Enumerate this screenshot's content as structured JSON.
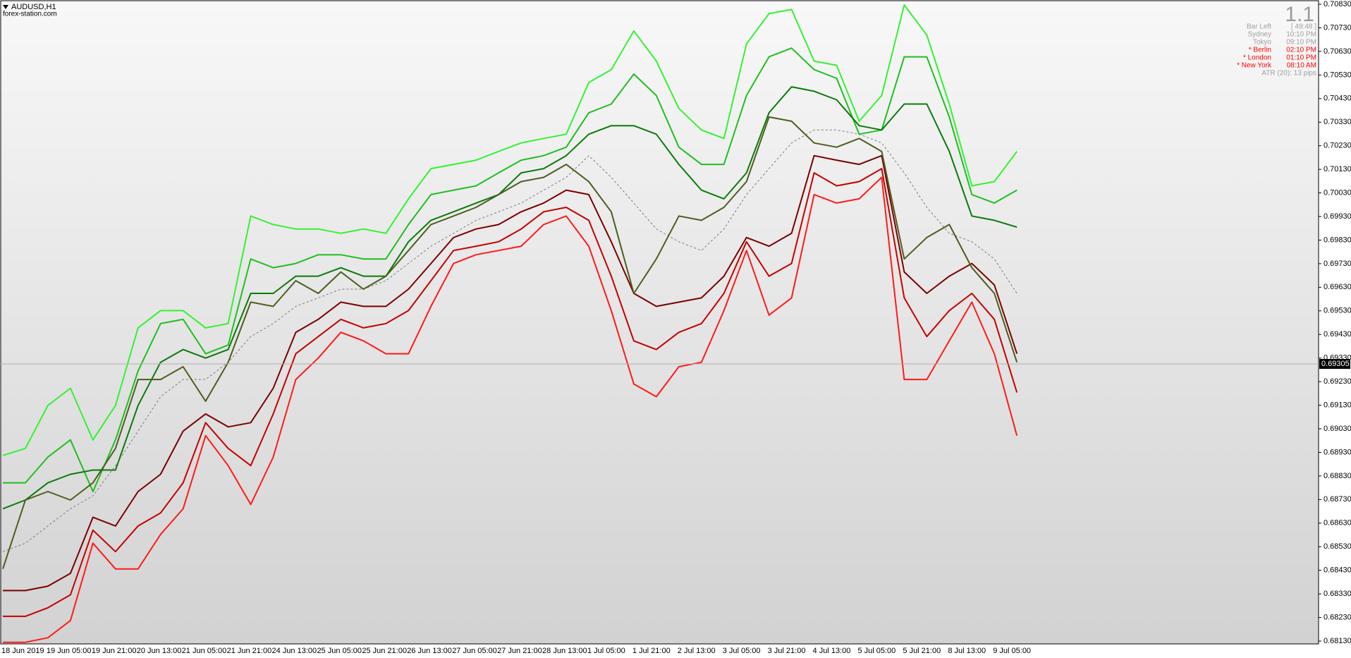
{
  "chart_data": {
    "type": "line",
    "title": "AUDUSD,H1",
    "subtitle": "forex-station.com",
    "categories": [
      "18 Jun 2019",
      null,
      "19 Jun 05:00",
      null,
      "19 Jun 21:00",
      null,
      "20 Jun 13:00",
      null,
      "21 Jun 05:00",
      null,
      "21 Jun 21:00",
      null,
      "24 Jun 13:00",
      null,
      "25 Jun 05:00",
      null,
      "25 Jun 21:00",
      null,
      "26 Jun 13:00",
      null,
      "27 Jun 05:00",
      null,
      "27 Jun 21:00",
      null,
      "28 Jun 13:00",
      null,
      "1 Jul 05:00",
      null,
      "1 Jul 21:00",
      null,
      "2 Jul 13:00",
      null,
      "3 Jul 05:00",
      null,
      "3 Jul 21:00",
      null,
      "4 Jul 13:00",
      null,
      "5 Jul 05:00",
      null,
      "5 Jul 21:00",
      null,
      "8 Jul 13:00",
      null,
      "9 Jul 05:00",
      null
    ],
    "series": [
      {
        "color": "#33f233",
        "line_style": "solid",
        "values": [
          0.68917,
          0.68947,
          0.69129,
          0.69202,
          0.68983,
          0.69129,
          0.69458,
          0.69531,
          0.69531,
          0.69458,
          0.69476,
          0.69932,
          0.69896,
          0.69877,
          0.69877,
          0.69859,
          0.69877,
          0.69859,
          0.70005,
          0.70133,
          0.70151,
          0.70169,
          0.70206,
          0.70242,
          0.70261,
          0.70279,
          0.70498,
          0.70553,
          0.70717,
          0.70589,
          0.70388,
          0.70297,
          0.70261,
          0.70662,
          0.7079,
          0.70808,
          0.70589,
          0.70571,
          0.70334,
          0.70443,
          0.70827,
          0.70699,
          0.70407,
          0.7006,
          0.70078,
          0.70206
        ]
      },
      {
        "color": "#1fbf1f",
        "line_style": "solid",
        "values": [
          0.68801,
          0.68801,
          0.6891,
          0.68983,
          0.68764,
          0.68983,
          0.69275,
          0.69476,
          0.69494,
          0.69348,
          0.69385,
          0.6975,
          0.69713,
          0.69731,
          0.69768,
          0.69768,
          0.6975,
          0.6975,
          0.69896,
          0.70023,
          0.70042,
          0.7006,
          0.70115,
          0.70169,
          0.70188,
          0.70224,
          0.7037,
          0.70407,
          0.70534,
          0.70443,
          0.70224,
          0.70151,
          0.70151,
          0.70443,
          0.70607,
          0.70644,
          0.70553,
          0.70516,
          0.70279,
          0.70297,
          0.70607,
          0.70607,
          0.70352,
          0.70023,
          0.69987,
          0.70042
        ]
      },
      {
        "color": "#0a7a0a",
        "line_style": "solid",
        "values": [
          0.68691,
          0.68728,
          0.68801,
          0.68837,
          0.68855,
          0.68855,
          0.69129,
          0.69312,
          0.69366,
          0.6933,
          0.69366,
          0.69604,
          0.69604,
          0.69677,
          0.69677,
          0.69713,
          0.69677,
          0.69677,
          0.69823,
          0.69914,
          0.6995,
          0.69987,
          0.70023,
          0.70115,
          0.70133,
          0.70188,
          0.70279,
          0.70315,
          0.70315,
          0.70279,
          0.70151,
          0.70042,
          0.70005,
          0.70115,
          0.7037,
          0.7048,
          0.70461,
          0.70425,
          0.70315,
          0.70297,
          0.70407,
          0.70407,
          0.70206,
          0.69932,
          0.69914,
          0.69885
        ]
      },
      {
        "color": "#7a7a7a",
        "line_style": "dashed",
        "values": [
          0.68509,
          0.68545,
          0.68618,
          0.68691,
          0.68746,
          0.68874,
          0.6902,
          0.69166,
          0.69239,
          0.69239,
          0.69312,
          0.69421,
          0.69476,
          0.69549,
          0.69585,
          0.69622,
          0.69622,
          0.69658,
          0.69731,
          0.69804,
          0.69859,
          0.69914,
          0.6995,
          0.69987,
          0.70042,
          0.70096,
          0.70188,
          0.70096,
          0.69987,
          0.69877,
          0.69823,
          0.69786,
          0.69877,
          0.70023,
          0.70133,
          0.70242,
          0.70297,
          0.70297,
          0.70279,
          0.70242,
          0.70115,
          0.69969,
          0.69859,
          0.69823,
          0.6975,
          0.69604
        ]
      },
      {
        "color": "#7a0000",
        "line_style": "solid",
        "values": [
          0.68344,
          0.68344,
          0.68363,
          0.68417,
          0.68655,
          0.68618,
          0.68764,
          0.68837,
          0.6902,
          0.69093,
          0.69038,
          0.69056,
          0.69202,
          0.69439,
          0.69494,
          0.69567,
          0.69549,
          0.69549,
          0.69622,
          0.69731,
          0.69841,
          0.69877,
          0.69896,
          0.6995,
          0.69987,
          0.70042,
          0.70023,
          0.69823,
          0.69604,
          0.69549,
          0.69567,
          0.69585,
          0.69677,
          0.69841,
          0.69804,
          0.69859,
          0.70188,
          0.70169,
          0.70151,
          0.70188,
          0.69695,
          0.69604,
          0.69677,
          0.69731,
          0.6964,
          0.69348
        ]
      },
      {
        "color": "#c40000",
        "line_style": "solid",
        "values": [
          0.68235,
          0.68235,
          0.68271,
          0.68326,
          0.686,
          0.68509,
          0.68618,
          0.68673,
          0.68801,
          0.69056,
          0.68947,
          0.68874,
          0.69093,
          0.69348,
          0.69421,
          0.69494,
          0.69458,
          0.69476,
          0.69531,
          0.69658,
          0.69786,
          0.69804,
          0.69823,
          0.69877,
          0.6995,
          0.69969,
          0.69914,
          0.69677,
          0.69403,
          0.69366,
          0.69439,
          0.69476,
          0.69604,
          0.69823,
          0.69677,
          0.69731,
          0.70115,
          0.7006,
          0.70078,
          0.70133,
          0.69585,
          0.69421,
          0.69531,
          0.69604,
          0.69494,
          0.69184
        ]
      },
      {
        "color": "#ff1a1a",
        "line_style": "solid",
        "values": [
          0.68125,
          0.68125,
          0.68144,
          0.68217,
          0.68545,
          0.68436,
          0.68436,
          0.68582,
          0.68691,
          0.69001,
          0.68874,
          0.68709,
          0.6891,
          0.69239,
          0.6933,
          0.69439,
          0.69403,
          0.69348,
          0.69348,
          0.69549,
          0.69731,
          0.69768,
          0.69786,
          0.69804,
          0.69896,
          0.69932,
          0.69804,
          0.69531,
          0.6922,
          0.69166,
          0.69293,
          0.69312,
          0.69531,
          0.69786,
          0.69512,
          0.69585,
          0.70023,
          0.69987,
          0.70005,
          0.70096,
          0.69239,
          0.69239,
          0.69403,
          0.69567,
          0.69348,
          0.69001
        ]
      },
      {
        "color": "#4b5e1e",
        "line_style": "solid",
        "values": [
          0.68436,
          0.68728,
          0.68764,
          0.68728,
          0.68801,
          0.68947,
          0.69239,
          0.69239,
          0.69293,
          0.69147,
          0.69312,
          0.69567,
          0.69549,
          0.69658,
          0.69604,
          0.69695,
          0.69622,
          0.69677,
          0.69786,
          0.69896,
          0.69932,
          0.69969,
          0.70023,
          0.70078,
          0.70096,
          0.70151,
          0.70078,
          0.6995,
          0.69604,
          0.6975,
          0.69932,
          0.69914,
          0.69969,
          0.70078,
          0.70352,
          0.70334,
          0.70242,
          0.70224,
          0.70261,
          0.70206,
          0.6975,
          0.69841,
          0.69896,
          0.69713,
          0.69604,
          0.69312
        ]
      }
    ],
    "current_price": 0.69305,
    "ylim": [
      0.68118,
      0.70845
    ],
    "yticks": [
      {
        "value": 0.7083,
        "label": "0.70830"
      },
      {
        "value": 0.7073,
        "label": "0.70730"
      },
      {
        "value": 0.7063,
        "label": "0.70630"
      },
      {
        "value": 0.7053,
        "label": "0.70530"
      },
      {
        "value": 0.7043,
        "label": "0.70430"
      },
      {
        "value": 0.7033,
        "label": "0.70330"
      },
      {
        "value": 0.7023,
        "label": "0.70230"
      },
      {
        "value": 0.7013,
        "label": "0.70130"
      },
      {
        "value": 0.7003,
        "label": "0.70030"
      },
      {
        "value": 0.6993,
        "label": "0.69930"
      },
      {
        "value": 0.6983,
        "label": "0.69830"
      },
      {
        "value": 0.6973,
        "label": "0.69730"
      },
      {
        "value": 0.6963,
        "label": "0.69630"
      },
      {
        "value": 0.6953,
        "label": "0.69530"
      },
      {
        "value": 0.6943,
        "label": "0.69430"
      },
      {
        "value": 0.6933,
        "label": "0.69330"
      },
      {
        "value": 0.6923,
        "label": "0.69230"
      },
      {
        "value": 0.6913,
        "label": "0.69130"
      },
      {
        "value": 0.6903,
        "label": "0.69030"
      },
      {
        "value": 0.6893,
        "label": "0.68930"
      },
      {
        "value": 0.6883,
        "label": "0.68830"
      },
      {
        "value": 0.6873,
        "label": "0.68730"
      },
      {
        "value": 0.6863,
        "label": "0.68630"
      },
      {
        "value": 0.6853,
        "label": "0.68530"
      },
      {
        "value": 0.6843,
        "label": "0.68430"
      },
      {
        "value": 0.6833,
        "label": "0.68330"
      },
      {
        "value": 0.6823,
        "label": "0.68230"
      },
      {
        "value": 0.6813,
        "label": "0.68130"
      }
    ],
    "grid": false
  },
  "info_panel": {
    "version": "1.1",
    "rows": [
      {
        "label": "Bar Left",
        "value": "[ 49:48 ]",
        "color": "#a0a0a0"
      },
      {
        "label": "Sydney",
        "value": "10:10 PM",
        "color": "#a0a0a0"
      },
      {
        "label": "Tokyo",
        "value": "09:10 PM",
        "color": "#a0a0a0"
      },
      {
        "label": "* Berlin",
        "value": "02:10 PM",
        "color": "#ff0000"
      },
      {
        "label": "* London",
        "value": "01:10 PM",
        "color": "#ff0000"
      },
      {
        "label": "* New York",
        "value": "08:10 AM",
        "color": "#ff0000"
      }
    ],
    "atr": "ATR (20): 13 pips"
  }
}
